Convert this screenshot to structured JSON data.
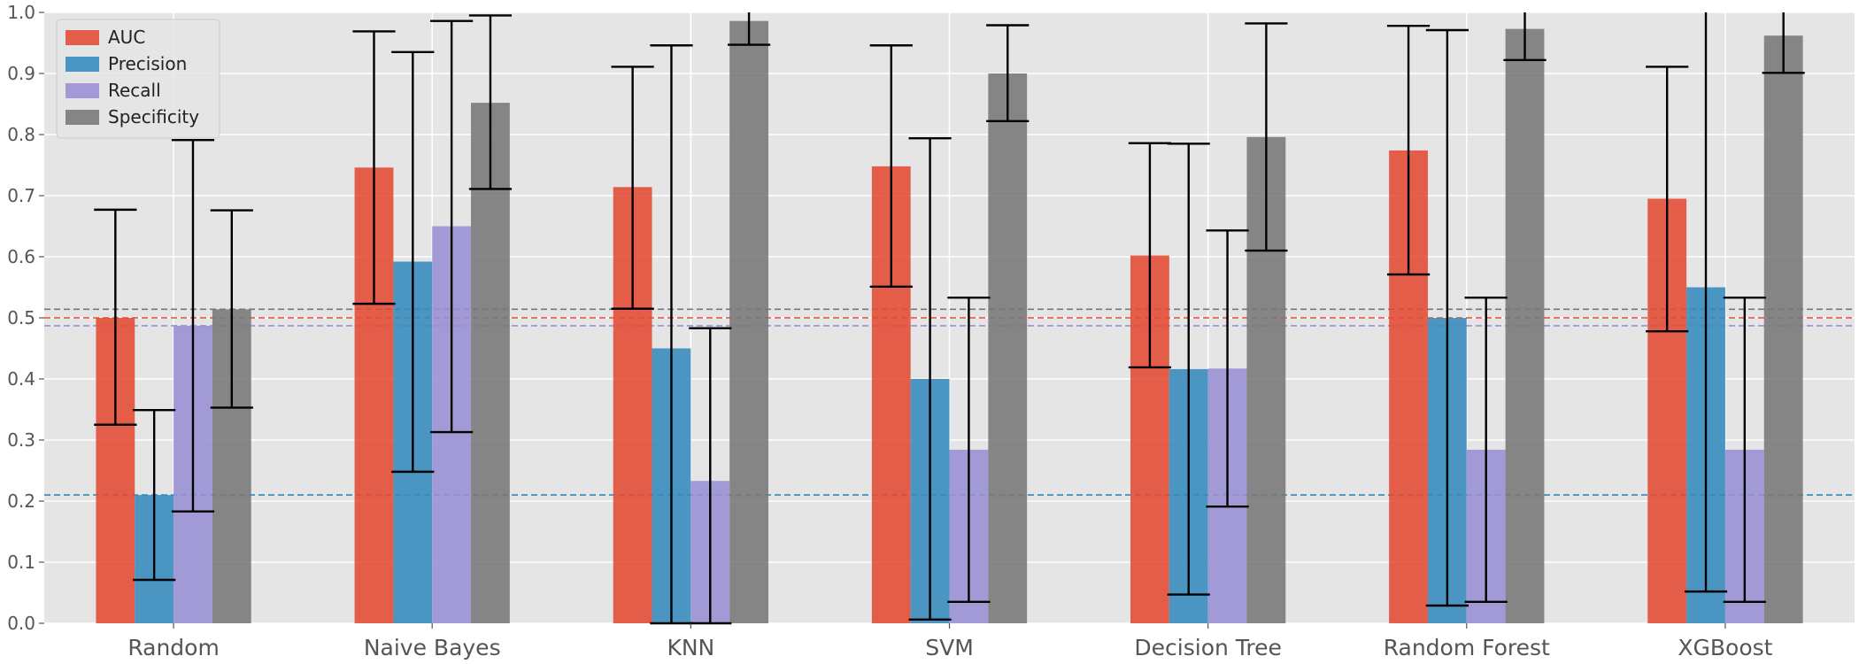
{
  "chart_data": {
    "type": "bar",
    "title": "",
    "xlabel": "",
    "ylabel": "",
    "ylim": [
      0,
      1.0
    ],
    "yticks": [
      0.0,
      0.1,
      0.2,
      0.3,
      0.4,
      0.5,
      0.6,
      0.7,
      0.8,
      0.9,
      1.0
    ],
    "ytick_labels": [
      "0.0",
      "0.1",
      "0.2",
      "0.3",
      "0.4",
      "0.5",
      "0.6",
      "0.7",
      "0.8",
      "0.9",
      "1.0"
    ],
    "grid": true,
    "legend_position": "top-left",
    "categories": [
      "Random",
      "Naive Bayes",
      "KNN",
      "SVM",
      "Decision Tree",
      "Random Forest",
      "XGBoost"
    ],
    "series": [
      {
        "name": "AUC",
        "color": "#E24A33",
        "values": [
          0.5,
          0.746,
          0.714,
          0.748,
          0.602,
          0.774,
          0.695
        ],
        "err_low": [
          0.325,
          0.523,
          0.515,
          0.551,
          0.419,
          0.571,
          0.478
        ],
        "err_high": [
          0.677,
          0.969,
          0.911,
          0.946,
          0.786,
          0.978,
          0.911
        ]
      },
      {
        "name": "Precision",
        "color": "#348ABD",
        "values": [
          0.21,
          0.592,
          0.45,
          0.4,
          0.416,
          0.5,
          0.55
        ],
        "err_low": [
          0.071,
          0.248,
          0.0,
          0.006,
          0.047,
          0.029,
          0.052
        ],
        "err_high": [
          0.349,
          0.935,
          0.946,
          0.794,
          0.785,
          0.971,
          1.05
        ]
      },
      {
        "name": "Recall",
        "color": "#988ED5",
        "values": [
          0.487,
          0.65,
          0.233,
          0.284,
          0.417,
          0.284,
          0.284
        ],
        "err_low": [
          0.183,
          0.313,
          0.0,
          0.035,
          0.191,
          0.035,
          0.035
        ],
        "err_high": [
          0.791,
          0.986,
          0.483,
          0.533,
          0.643,
          0.533,
          0.533
        ]
      },
      {
        "name": "Specificity",
        "color": "#777777",
        "values": [
          0.514,
          0.852,
          0.986,
          0.9,
          0.796,
          0.973,
          0.962
        ],
        "err_low": [
          0.353,
          0.711,
          0.947,
          0.822,
          0.61,
          0.922,
          0.901
        ],
        "err_high": [
          0.676,
          0.995,
          1.025,
          0.979,
          0.982,
          1.025,
          1.025
        ]
      }
    ],
    "reference_lines": [
      {
        "y": 0.514,
        "color": "#777777"
      },
      {
        "y": 0.5,
        "color": "#E24A33"
      },
      {
        "y": 0.487,
        "color": "#988ED5"
      },
      {
        "y": 0.21,
        "color": "#348ABD"
      }
    ]
  }
}
